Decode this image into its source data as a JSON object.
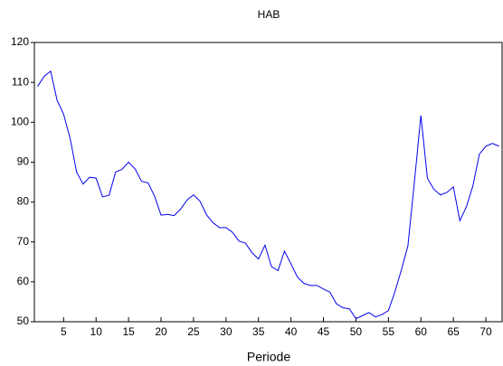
{
  "chart_data": {
    "type": "line",
    "title": "HAB",
    "x_label": "Periode",
    "x": [
      1,
      2,
      3,
      4,
      5,
      6,
      7,
      8,
      9,
      10,
      11,
      12,
      13,
      14,
      15,
      16,
      17,
      18,
      19,
      20,
      21,
      22,
      23,
      24,
      25,
      26,
      27,
      28,
      29,
      30,
      31,
      32,
      33,
      34,
      35,
      36,
      37,
      38,
      39,
      40,
      41,
      42,
      43,
      44,
      45,
      46,
      47,
      48,
      49,
      50,
      51,
      52,
      53,
      54,
      55,
      56,
      57,
      58,
      59,
      60,
      61,
      62,
      63,
      64,
      65,
      66,
      67,
      68,
      69,
      70,
      71,
      72
    ],
    "series": [
      {
        "name": "HAB",
        "color": "#0000ee",
        "values": [
          109,
          111.5,
          112.8,
          105.5,
          102,
          96,
          87.5,
          84.5,
          86.2,
          86,
          81.3,
          81.7,
          87.5,
          88.2,
          90,
          88.3,
          85.2,
          84.8,
          81.5,
          76.7,
          76.9,
          76.6,
          78.2,
          80.5,
          81.8,
          80.2,
          76.8,
          74.8,
          73.6,
          73.6,
          72.4,
          70.2,
          69.7,
          67.3,
          65.7,
          69.2,
          63.8,
          62.8,
          67.7,
          64.5,
          61.2,
          59.6,
          59.1,
          59.1,
          58.2,
          57.4,
          54.5,
          53.5,
          53.2,
          50.8,
          51.5,
          52.3,
          51.2,
          51.8,
          52.8,
          57.5,
          63,
          69,
          85,
          101.7,
          86,
          83.2,
          81.8,
          82.4,
          83.8,
          75.3,
          78.8,
          84,
          92,
          94,
          94.7,
          94
        ]
      }
    ],
    "xlim": [
      0.5,
      72.5
    ],
    "xticks": [
      5,
      10,
      15,
      20,
      25,
      30,
      35,
      40,
      45,
      50,
      55,
      60,
      65,
      70
    ],
    "ylim": [
      50,
      120
    ],
    "yticks": [
      50,
      60,
      70,
      80,
      90,
      100,
      110,
      120
    ]
  }
}
